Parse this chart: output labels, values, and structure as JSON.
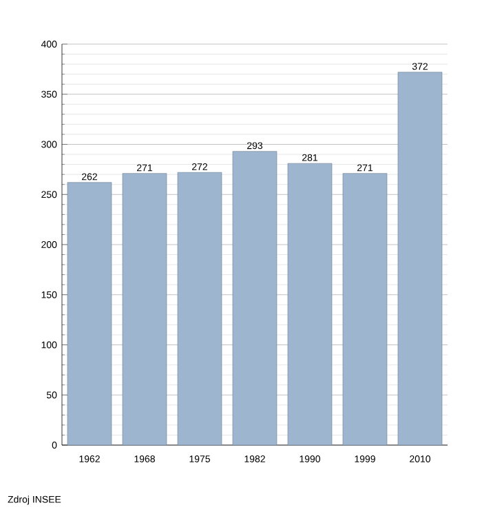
{
  "chart_data": {
    "type": "bar",
    "categories": [
      "1962",
      "1968",
      "1975",
      "1982",
      "1990",
      "1999",
      "2010"
    ],
    "values": [
      262,
      271,
      272,
      293,
      281,
      271,
      372
    ],
    "color": "#9db5cf",
    "ylim": [
      0,
      400
    ],
    "yticks": [
      0,
      50,
      100,
      150,
      200,
      250,
      300,
      350,
      400
    ],
    "grid": "y",
    "data_labels": true,
    "annotations": [
      "Zdroj INSEE"
    ]
  }
}
